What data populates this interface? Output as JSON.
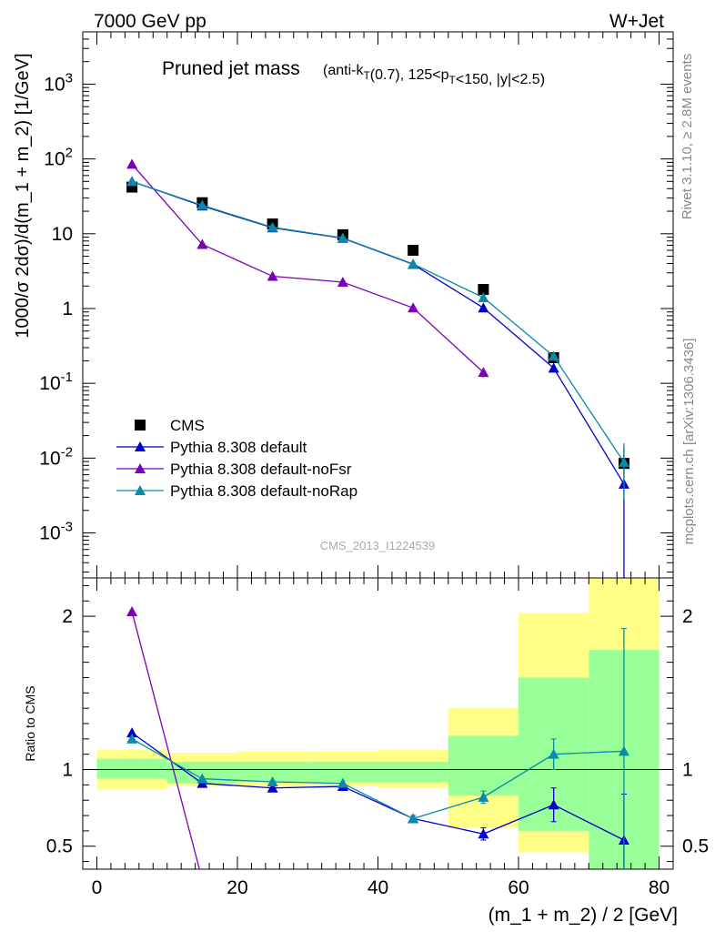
{
  "header": {
    "left": "7000 GeV pp",
    "right": "W+Jet"
  },
  "side_labels": {
    "rivet": "Rivet 3.1.10, ≥ 2.8M events",
    "mcplots": "mcplots.cern.ch [arXiv:1306.3436]"
  },
  "title": {
    "main": "Pruned jet mass",
    "sub": "(anti-k_T(0.7), 125<p_T<150, |y|<2.5)"
  },
  "watermark": "CMS_2013_I1224539",
  "colors": {
    "cms": "#000000",
    "default": "#0000cc",
    "noFsr": "#7a00b8",
    "noRap": "#0a8aa8",
    "band_inner": "#99ff99",
    "band_outer": "#ffff88"
  },
  "chart_data": [
    {
      "type": "scatter",
      "panel": "main",
      "ylabel": "1000/σ 2dσ)/d(m_1 + m_2) [1/GeV]",
      "yscale": "log",
      "xlim": [
        -2,
        82
      ],
      "ylim": [
        0.00025,
        5000
      ],
      "y_tick_labels": [
        "10^-3",
        "10^-2",
        "10^-1",
        "1",
        "10",
        "10^2",
        "10^3"
      ],
      "legend_position": "lower-left",
      "x": [
        5,
        15,
        25,
        35,
        45,
        55,
        65,
        75
      ],
      "series": [
        {
          "name": "CMS",
          "marker": "square",
          "values": [
            42,
            26,
            13.5,
            9.7,
            6.0,
            1.8,
            0.22,
            0.0085
          ]
        },
        {
          "name": "Pythia 8.308 default",
          "marker": "triangle",
          "values": [
            50,
            23.5,
            12,
            8.7,
            3.9,
            1.02,
            0.16,
            0.0045
          ],
          "err_low": [
            0,
            0,
            0,
            0,
            0,
            0.08,
            0.02,
            0.0045
          ],
          "err_high": [
            0,
            0,
            0,
            0,
            0,
            0.08,
            0.02,
            0.009
          ]
        },
        {
          "name": "Pythia 8.308 default-noFsr",
          "marker": "triangle",
          "values": [
            85,
            7.2,
            2.7,
            2.25,
            1.02,
            0.14,
            null,
            null
          ],
          "err_low": [
            0,
            0,
            0,
            0,
            0,
            0.02,
            0,
            0
          ],
          "err_high": [
            0,
            0,
            0,
            0,
            0,
            0.02,
            0,
            0
          ]
        },
        {
          "name": "Pythia 8.308 default-noRap",
          "marker": "triangle",
          "values": [
            50,
            24,
            12.2,
            8.8,
            3.95,
            1.4,
            0.23,
            0.0088
          ],
          "err_low": [
            0,
            0,
            0,
            0,
            0,
            0.1,
            0.03,
            0.006
          ],
          "err_high": [
            0,
            0,
            0,
            0,
            0,
            0.1,
            0.03,
            0.007
          ]
        }
      ]
    },
    {
      "type": "scatter",
      "panel": "ratio",
      "xlabel": "(m_1 + m_2) / 2 [GeV]",
      "ylabel": "Ratio to CMS",
      "xlim": [
        -2,
        82
      ],
      "ylim": [
        0.35,
        2.25
      ],
      "x_tick_labels": [
        "0",
        "20",
        "40",
        "60",
        "80"
      ],
      "y_tick_labels": [
        "0.5",
        "1",
        "2"
      ],
      "bins": [
        [
          0,
          10
        ],
        [
          10,
          20
        ],
        [
          20,
          30
        ],
        [
          30,
          40
        ],
        [
          40,
          50
        ],
        [
          50,
          60
        ],
        [
          60,
          70
        ],
        [
          70,
          80
        ]
      ],
      "band_inner": [
        [
          0.94,
          1.07
        ],
        [
          0.91,
          1.05
        ],
        [
          0.92,
          1.05
        ],
        [
          0.92,
          1.05
        ],
        [
          0.92,
          1.05
        ],
        [
          0.83,
          1.22
        ],
        [
          0.6,
          1.6
        ],
        [
          0.35,
          1.78
        ]
      ],
      "band_outer": [
        [
          0.87,
          1.13
        ],
        [
          0.89,
          1.11
        ],
        [
          0.89,
          1.12
        ],
        [
          0.89,
          1.12
        ],
        [
          0.88,
          1.13
        ],
        [
          0.62,
          1.4
        ],
        [
          0.46,
          2.02
        ],
        [
          0.35,
          2.25
        ]
      ],
      "x": [
        5,
        15,
        25,
        35,
        45,
        55,
        65,
        75
      ],
      "series": [
        {
          "name": "Pythia 8.308 default",
          "values": [
            1.24,
            0.91,
            0.88,
            0.89,
            0.68,
            0.58,
            0.77,
            0.54
          ],
          "err_low": [
            0,
            0,
            0,
            0,
            0.02,
            0.04,
            0.11,
            0.3
          ],
          "err_high": [
            0,
            0,
            0,
            0,
            0.02,
            0.04,
            0.11,
            0.3
          ]
        },
        {
          "name": "Pythia 8.308 default-noFsr",
          "values": [
            2.03,
            0.28,
            null,
            null,
            null,
            null,
            null,
            null
          ]
        },
        {
          "name": "Pythia 8.308 default-noRap",
          "values": [
            1.2,
            0.94,
            0.92,
            0.91,
            0.68,
            0.82,
            1.1,
            1.12
          ],
          "err_low": [
            0,
            0,
            0,
            0,
            0.02,
            0.04,
            0.1,
            0.8
          ],
          "err_high": [
            0,
            0,
            0,
            0,
            0.02,
            0.04,
            0.1,
            0.8
          ]
        }
      ]
    }
  ]
}
